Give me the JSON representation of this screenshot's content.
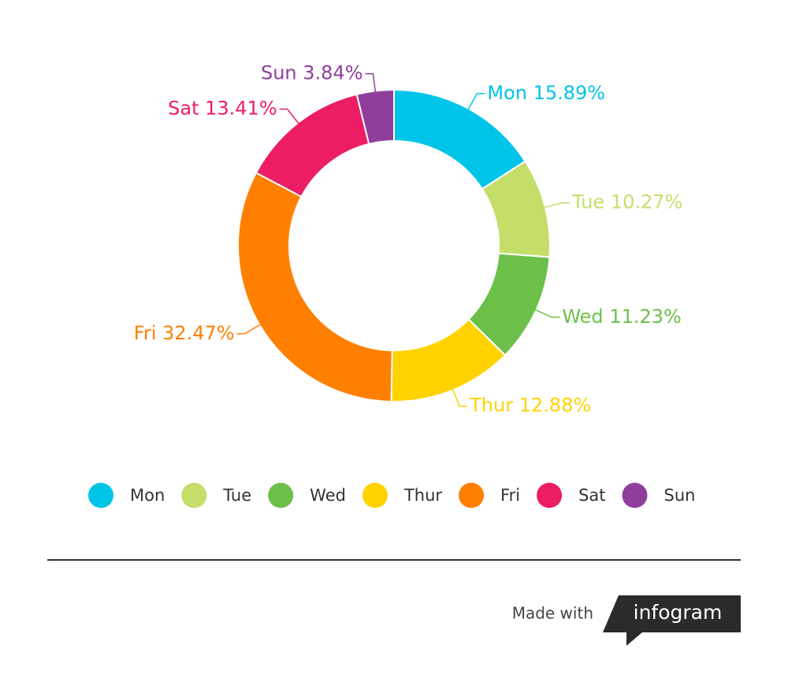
{
  "chart_data": {
    "type": "donut",
    "categories": [
      "Mon",
      "Tue",
      "Wed",
      "Thur",
      "Fri",
      "Sat",
      "Sun"
    ],
    "values": [
      15.89,
      10.27,
      11.23,
      12.88,
      32.47,
      13.41,
      3.84
    ],
    "value_labels": [
      "15.89%",
      "10.27%",
      "11.23%",
      "12.88%",
      "32.47%",
      "13.41%",
      "3.84%"
    ],
    "colors": [
      "#00c4e8",
      "#c5de6a",
      "#6cc04a",
      "#ffd200",
      "#ff7f00",
      "#ec1c65",
      "#8f3f9b"
    ],
    "legend": "bottom"
  },
  "footer": {
    "made_with": "Made with",
    "brand": "infogram"
  }
}
